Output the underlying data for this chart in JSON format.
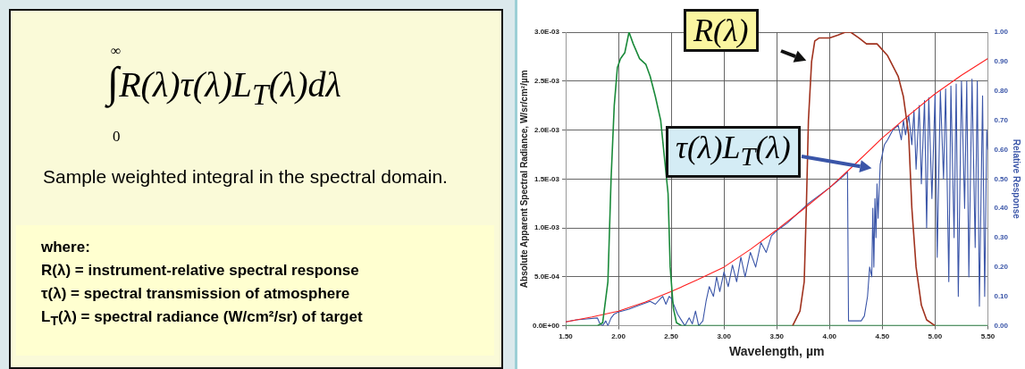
{
  "chart_data": [
    {
      "type": "other",
      "annotations": [
        "∞",
        "0",
        "∫",
        "R(λ)τ(λ)L$_{T}$(λ)dλ",
        "Sample weighted integral in the spectral domain.",
        "where:",
        "R(λ) = instrument-relative spectral response",
        "τ(λ) = spectral transmission of atmosphere",
        "L$_{T}$(λ) = spectral radiance (W/cm²/sr) of target"
      ]
    },
    {
      "type": "line",
      "xlabel": "Wavelength, µm",
      "ylabel": "Absolute Apparent Spectral Radiance, W/sr/cm²/µm",
      "y2label": "Relative Response",
      "annotations": [
        {
          "text": "R(λ)",
          "x": 3.83,
          "y": 0.0027
        },
        {
          "text": "τ(λ)L$_{T}$(λ)",
          "x": 4.45,
          "y": 0.0016
        }
      ],
      "xlim": [
        1.5,
        5.5
      ],
      "xticks": [
        {
          "value": 1.5,
          "label": "1.50"
        },
        {
          "value": 2,
          "label": "2.00"
        },
        {
          "value": 2.5,
          "label": "2.50"
        },
        {
          "value": 3,
          "label": "3.00"
        },
        {
          "value": 3.5,
          "label": "3.50"
        },
        {
          "value": 4,
          "label": "4.00"
        },
        {
          "value": 4.5,
          "label": "4.50"
        },
        {
          "value": 5,
          "label": "5.00"
        },
        {
          "value": 5.5,
          "label": "5.50"
        }
      ],
      "ylim": [
        0,
        0.003
      ],
      "yticks": [
        {
          "value": 0,
          "label": "0.0E+00"
        },
        {
          "value": 0.0005,
          "label": "5.0E-04"
        },
        {
          "value": 0.001,
          "label": "1.0E-03"
        },
        {
          "value": 0.0015,
          "label": "1.5E-03"
        },
        {
          "value": 0.002,
          "label": "2.0E-03"
        },
        {
          "value": 0.0025,
          "label": "2.5E-03"
        },
        {
          "value": 0.003,
          "label": "3.0E-03"
        }
      ],
      "y2lim": [
        0,
        1
      ],
      "y2ticks": [
        {
          "value": 0,
          "label": "0.00"
        },
        {
          "value": 0.1,
          "label": "0.10"
        },
        {
          "value": 0.2,
          "label": "0.20"
        },
        {
          "value": 0.3,
          "label": "0.30"
        },
        {
          "value": 0.4,
          "label": "0.40"
        },
        {
          "value": 0.5,
          "label": "0.50"
        },
        {
          "value": 0.6,
          "label": "0.60"
        },
        {
          "value": 0.7,
          "label": "0.70"
        },
        {
          "value": 0.8,
          "label": "0.80"
        },
        {
          "value": 0.9,
          "label": "0.90"
        },
        {
          "value": 1,
          "label": "1.00"
        }
      ],
      "grid": true,
      "legend": false,
      "marker": "none",
      "line_style": "solid",
      "series": [
        {
          "color": "#a0321e",
          "axis": "y2",
          "x": [
            3.65,
            3.72,
            3.76,
            3.78,
            3.8,
            3.83,
            3.86,
            3.9,
            4.0,
            4.08,
            4.15,
            4.2,
            4.28,
            4.35,
            4.45,
            4.55,
            4.65,
            4.7,
            4.75,
            4.78,
            4.82,
            4.87,
            4.92,
            5.0
          ],
          "values": [
            0,
            0.05,
            0.15,
            0.4,
            0.7,
            0.9,
            0.97,
            0.98,
            0.98,
            0.99,
            1.0,
            1.0,
            0.98,
            0.96,
            0.96,
            0.92,
            0.85,
            0.78,
            0.65,
            0.4,
            0.2,
            0.07,
            0.02,
            0
          ]
        },
        {
          "color": "#1a8a3a",
          "axis": "y2",
          "x": [
            1.5,
            1.8,
            1.85,
            1.9,
            1.93,
            1.96,
            1.99,
            2.02,
            2.06,
            2.1,
            2.14,
            2.2,
            2.26,
            2.3,
            2.35,
            2.4,
            2.47,
            2.49,
            2.52,
            2.55,
            2.6,
            5.5
          ],
          "values": [
            0,
            0,
            0.01,
            0.15,
            0.5,
            0.75,
            0.88,
            0.91,
            0.93,
            1.0,
            0.96,
            0.91,
            0.89,
            0.85,
            0.78,
            0.7,
            0.45,
            0.2,
            0.06,
            0.01,
            0,
            0
          ]
        },
        {
          "color": "#ff2020",
          "x": [
            1.5,
            1.75,
            2.0,
            2.25,
            2.5,
            2.75,
            3.0,
            3.25,
            3.5,
            3.75,
            4.0,
            4.25,
            4.5,
            4.75,
            5.0,
            5.25,
            5.5
          ],
          "values": [
            4e-05,
            9e-05,
            0.00015,
            0.00024,
            0.00035,
            0.00047,
            0.0006,
            0.00078,
            0.00098,
            0.00119,
            0.00141,
            0.00166,
            0.00192,
            0.00215,
            0.00237,
            0.00256,
            0.00273
          ]
        },
        {
          "color": "#3a55a8",
          "x": [
            1.5,
            1.6,
            1.7,
            1.8,
            1.82,
            1.85,
            1.88,
            1.9,
            1.93,
            1.96,
            2.0,
            2.1,
            2.2,
            2.3,
            2.35,
            2.4,
            2.42,
            2.45,
            2.48,
            2.5,
            2.53,
            2.56,
            2.6,
            2.63,
            2.67,
            2.7,
            2.73,
            2.76,
            2.8,
            2.83,
            2.86,
            2.9,
            2.93,
            2.96,
            3.0,
            3.04,
            3.08,
            3.12,
            3.16,
            3.2,
            3.25,
            3.3,
            3.35,
            3.4,
            3.45,
            3.5,
            3.6,
            3.7,
            3.8,
            3.9,
            4.0,
            4.1,
            4.17,
            4.18,
            4.2,
            4.3,
            4.33,
            4.36,
            4.38,
            4.4,
            4.41,
            4.42,
            4.43,
            4.44,
            4.45,
            4.46,
            4.48,
            4.5,
            4.52,
            4.55,
            4.6,
            4.65,
            4.68,
            4.7,
            4.72,
            4.75,
            4.78,
            4.8,
            4.82,
            4.85,
            4.87,
            4.9,
            4.92,
            4.94,
            4.97,
            5.0,
            5.02,
            5.05,
            5.08,
            5.1,
            5.13,
            5.15,
            5.18,
            5.2,
            5.22,
            5.25,
            5.28,
            5.3,
            5.32,
            5.35,
            5.38,
            5.4,
            5.42,
            5.45,
            5.47,
            5.49,
            5.5
          ],
          "values": [
            4e-05,
            6e-05,
            7e-05,
            8e-05,
            3e-05,
            0,
            5e-05,
            0,
            8e-05,
            0.00012,
            0.00014,
            0.00017,
            0.00021,
            0.00025,
            0.00022,
            0.00028,
            0.0003,
            0.00022,
            0.0003,
            0.00028,
            0.0002,
            0.00012,
            5e-05,
            0,
            8e-05,
            2e-05,
            0.00015,
            0,
            5e-05,
            0.00025,
            0.0004,
            0.0003,
            0.0005,
            0.00035,
            0.00055,
            0.0004,
            0.00062,
            0.00045,
            0.0007,
            0.0005,
            0.00075,
            0.0006,
            0.00085,
            0.00075,
            0.00092,
            0.00097,
            0.00105,
            0.00115,
            0.00125,
            0.00133,
            0.00141,
            0.0015,
            0.00157,
            5e-05,
            5e-05,
            5e-05,
            0.0001,
            0.0003,
            0.0006,
            0.0005,
            0.0012,
            0.0006,
            0.0013,
            0.0009,
            0.00145,
            0.0011,
            0.00165,
            0.00175,
            0.00185,
            0.0019,
            0.002,
            0.00205,
            0.0019,
            0.0021,
            0.00195,
            0.00215,
            0.00185,
            0.0022,
            0.0016,
            0.00225,
            0.00145,
            0.0023,
            0.001,
            0.00233,
            0.0013,
            0.00237,
            0.0007,
            0.0024,
            0.0015,
            0.00242,
            0.00045,
            0.00245,
            0.0009,
            0.00247,
            0.0003,
            0.0025,
            0.0012,
            0.0025,
            0.0005,
            0.00252,
            0.0008,
            0.0025,
            0.0002,
            0.00235,
            0.0003,
            0.002,
            0.0018
          ]
        }
      ]
    }
  ]
}
